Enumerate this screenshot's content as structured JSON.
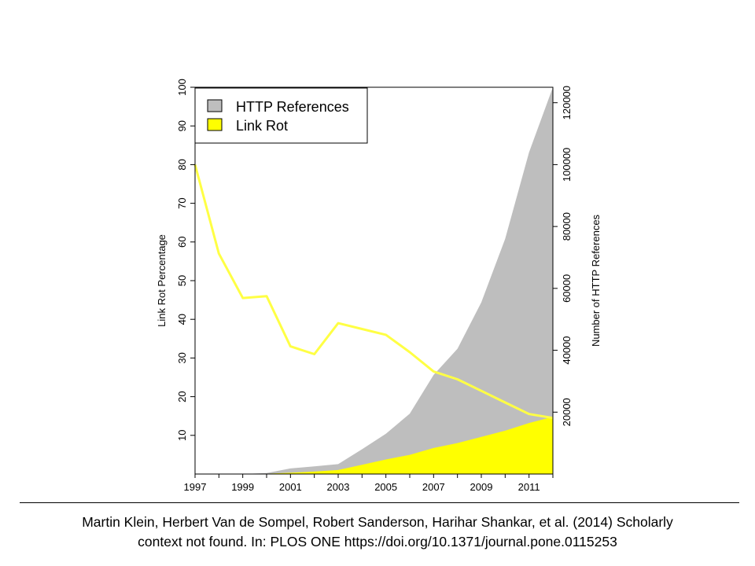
{
  "chart_data": {
    "type": "area",
    "x": [
      1997,
      1998,
      1999,
      2000,
      2001,
      2002,
      2003,
      2004,
      2005,
      2006,
      2007,
      2008,
      2009,
      2010,
      2011,
      2012
    ],
    "x_ticks": [
      1997,
      1999,
      2001,
      2003,
      2005,
      2007,
      2009,
      2011
    ],
    "xlim": [
      1997,
      2012
    ],
    "series": [
      {
        "name": "HTTP References",
        "axis": "right",
        "color": "#bebebe",
        "render": "area",
        "values": [
          0,
          0,
          0,
          300,
          1800,
          2500,
          3200,
          8000,
          13000,
          19500,
          32000,
          40500,
          55500,
          76000,
          104000,
          125000
        ]
      },
      {
        "name": "Link Rot",
        "axis": "right",
        "color": "#ffff00",
        "render": "area",
        "values": [
          0,
          0,
          0,
          100,
          400,
          800,
          1300,
          3000,
          4700,
          6200,
          8400,
          10000,
          12000,
          14000,
          16500,
          18500
        ]
      },
      {
        "name": "Link Rot Percentage",
        "axis": "left",
        "color": "#ffff44",
        "render": "line",
        "values": [
          80,
          57,
          45.5,
          46,
          33,
          31,
          39,
          37.5,
          36,
          31.5,
          26.5,
          24.5,
          21.5,
          18.5,
          15.5,
          14.5
        ]
      }
    ],
    "y_left": {
      "label": "Link Rot Percentage",
      "lim": [
        0,
        100
      ],
      "ticks": [
        10,
        20,
        30,
        40,
        50,
        60,
        70,
        80,
        90,
        100
      ]
    },
    "y_right": {
      "label": "Number of HTTP References",
      "lim": [
        0,
        125000
      ],
      "ticks": [
        20000,
        40000,
        60000,
        80000,
        100000,
        120000
      ]
    },
    "legend": {
      "placement": "top-left",
      "items": [
        {
          "label": "HTTP References",
          "color": "#bebebe"
        },
        {
          "label": "Link Rot",
          "color": "#ffff00"
        }
      ]
    },
    "grid": false
  },
  "caption": {
    "line1": "Martin Klein, Herbert Van de Sompel, Robert Sanderson, Harihar Shankar, et al. (2014) Scholarly",
    "line2": "context not found. In: PLOS ONE https://doi.org/10.1371/journal.pone.0115253"
  }
}
